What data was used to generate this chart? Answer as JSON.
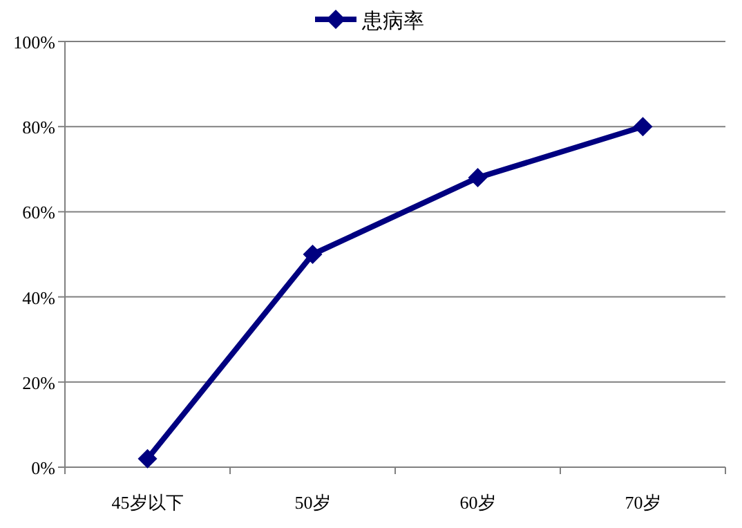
{
  "chart_data": {
    "type": "line",
    "categories": [
      "45岁以下",
      "50岁",
      "60岁",
      "70岁"
    ],
    "series": [
      {
        "name": "患病率",
        "color": "#000080",
        "values": [
          2,
          50,
          68,
          80
        ]
      }
    ],
    "ylim": [
      0,
      100
    ],
    "yticks": [
      {
        "value": 0,
        "label": "0%"
      },
      {
        "value": 20,
        "label": "20%"
      },
      {
        "value": 40,
        "label": "40%"
      },
      {
        "value": 60,
        "label": "60%"
      },
      {
        "value": 80,
        "label": "80%"
      },
      {
        "value": 100,
        "label": "100%"
      }
    ],
    "grid": "y",
    "legend": "top",
    "marker": "diamond",
    "line_style": "solid"
  }
}
